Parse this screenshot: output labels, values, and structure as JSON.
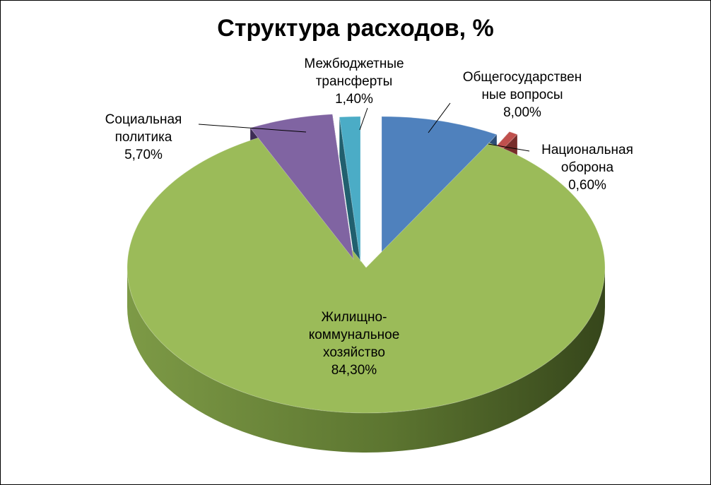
{
  "chart_data": {
    "type": "pie",
    "title": "Структура расходов, %",
    "slices": [
      {
        "label_lines": [
          "Общегосударствен",
          "ные вопросы"
        ],
        "value": 8.0,
        "value_label": "8,00%",
        "color": "#4f81bd"
      },
      {
        "label_lines": [
          "Национальная",
          "оборона"
        ],
        "value": 0.6,
        "value_label": "0,60%",
        "color": "#c0504d"
      },
      {
        "label_lines": [
          "Жилищно-",
          "коммунальное",
          "хозяйство"
        ],
        "value": 84.3,
        "value_label": "84,30%",
        "color": "#9bbb59"
      },
      {
        "label_lines": [
          "Социальная",
          "политика"
        ],
        "value": 5.7,
        "value_label": "5,70%",
        "color": "#8064a2"
      },
      {
        "label_lines": [
          "Межбюджетные",
          "трансферты"
        ],
        "value": 1.4,
        "value_label": "1,40%",
        "color": "#4bacc6"
      }
    ]
  }
}
